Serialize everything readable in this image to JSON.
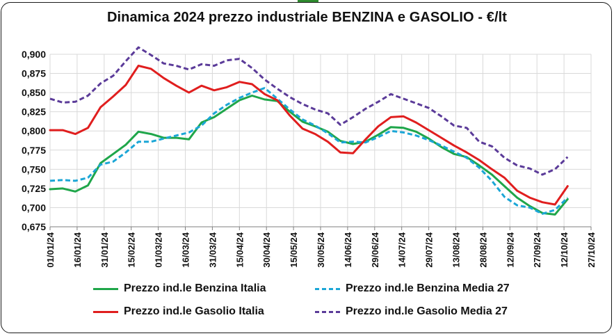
{
  "chart_data": {
    "type": "line",
    "title": "Dinamica 2024 prezzo industriale BENZINA e GASOLIO - €/lt",
    "xlabel": "",
    "ylabel": "",
    "ylim": [
      0.675,
      0.9
    ],
    "yticks": [
      "0,675",
      "0,700",
      "0,725",
      "0,750",
      "0,775",
      "0,800",
      "0,825",
      "0,850",
      "0,875",
      "0,900"
    ],
    "x_tick_labels": [
      "01/01/24",
      "16/01/24",
      "31/01/24",
      "15/02/24",
      "01/03/24",
      "16/03/24",
      "31/03/24",
      "15/04/24",
      "30/04/24",
      "15/05/24",
      "30/05/24",
      "14/06/24",
      "29/06/24",
      "14/07/24",
      "29/07/24",
      "13/08/24",
      "28/08/24",
      "12/09/24",
      "27/09/24",
      "12/10/24",
      "27/10/24"
    ],
    "x": [
      "01/01/24",
      "08/01/24",
      "15/01/24",
      "22/01/24",
      "29/01/24",
      "05/02/24",
      "12/02/24",
      "19/02/24",
      "26/02/24",
      "04/03/24",
      "11/03/24",
      "18/03/24",
      "25/03/24",
      "01/04/24",
      "08/04/24",
      "15/04/24",
      "22/04/24",
      "29/04/24",
      "06/05/24",
      "13/05/24",
      "20/05/24",
      "27/05/24",
      "03/06/24",
      "10/06/24",
      "17/06/24",
      "24/06/24",
      "01/07/24",
      "08/07/24",
      "15/07/24",
      "22/07/24",
      "29/07/24",
      "05/08/24",
      "12/08/24",
      "19/08/24",
      "26/08/24",
      "02/09/24",
      "09/09/24",
      "16/09/24",
      "23/09/24",
      "30/09/24",
      "07/10/24",
      "14/10/24"
    ],
    "grid": true,
    "legend_position": "bottom",
    "series": [
      {
        "name": "Prezzo ind.le Benzina Italia",
        "color": "#1fa64a",
        "dash": "solid",
        "values": [
          0.724,
          0.725,
          0.721,
          0.729,
          0.758,
          0.77,
          0.782,
          0.799,
          0.796,
          0.791,
          0.791,
          0.789,
          0.811,
          0.818,
          0.829,
          0.84,
          0.846,
          0.841,
          0.839,
          0.825,
          0.812,
          0.806,
          0.799,
          0.787,
          0.783,
          0.786,
          0.795,
          0.805,
          0.804,
          0.799,
          0.79,
          0.779,
          0.77,
          0.766,
          0.755,
          0.743,
          0.728,
          0.713,
          0.702,
          0.693,
          0.691,
          0.711
        ]
      },
      {
        "name": "Prezzo ind.le Benzina Media 27",
        "color": "#1ba6d6",
        "dash": "dashed",
        "values": [
          0.735,
          0.736,
          0.735,
          0.739,
          0.756,
          0.76,
          0.772,
          0.786,
          0.786,
          0.79,
          0.794,
          0.798,
          0.807,
          0.823,
          0.834,
          0.843,
          0.85,
          0.856,
          0.842,
          0.828,
          0.815,
          0.807,
          0.797,
          0.785,
          0.786,
          0.785,
          0.792,
          0.8,
          0.798,
          0.794,
          0.788,
          0.781,
          0.773,
          0.765,
          0.752,
          0.735,
          0.714,
          0.703,
          0.7,
          0.692,
          0.697,
          0.713
        ]
      },
      {
        "name": "Prezzo ind.le Gasolio Italia",
        "color": "#e01e1e",
        "dash": "solid",
        "values": [
          0.801,
          0.801,
          0.796,
          0.804,
          0.831,
          0.845,
          0.86,
          0.885,
          0.881,
          0.869,
          0.859,
          0.85,
          0.859,
          0.853,
          0.857,
          0.864,
          0.861,
          0.848,
          0.84,
          0.82,
          0.803,
          0.796,
          0.786,
          0.772,
          0.771,
          0.789,
          0.806,
          0.818,
          0.819,
          0.811,
          0.801,
          0.791,
          0.781,
          0.772,
          0.762,
          0.75,
          0.739,
          0.722,
          0.713,
          0.707,
          0.704,
          0.728
        ]
      },
      {
        "name": "Prezzo ind.le Gasolio Media 27",
        "color": "#5b3b99",
        "dash": "dashed",
        "values": [
          0.842,
          0.837,
          0.838,
          0.846,
          0.862,
          0.872,
          0.891,
          0.909,
          0.899,
          0.888,
          0.885,
          0.88,
          0.887,
          0.885,
          0.892,
          0.894,
          0.882,
          0.867,
          0.855,
          0.844,
          0.835,
          0.828,
          0.823,
          0.808,
          0.818,
          0.829,
          0.838,
          0.848,
          0.842,
          0.836,
          0.83,
          0.819,
          0.807,
          0.804,
          0.786,
          0.78,
          0.765,
          0.755,
          0.751,
          0.743,
          0.75,
          0.766
        ]
      }
    ]
  }
}
